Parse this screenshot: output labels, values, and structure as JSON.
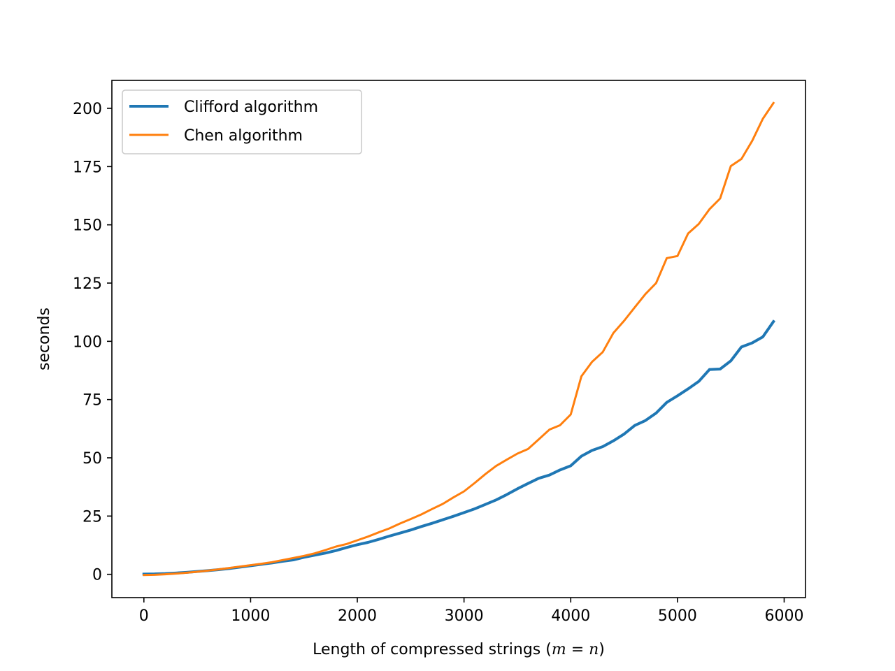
{
  "chart_data": {
    "type": "line",
    "title": "",
    "xlabel_prefix": "Length of compressed strings (",
    "xlabel_math": "m = n",
    "xlabel_suffix": ")",
    "ylabel": "seconds",
    "xlim": [
      -300,
      6200
    ],
    "ylim": [
      -10,
      212
    ],
    "xticks": [
      0,
      1000,
      2000,
      3000,
      4000,
      5000,
      6000
    ],
    "yticks": [
      0,
      25,
      50,
      75,
      100,
      125,
      150,
      175,
      200
    ],
    "grid": false,
    "legend_position": "top-left",
    "x": [
      0,
      100,
      200,
      300,
      400,
      500,
      600,
      700,
      800,
      900,
      1000,
      1100,
      1200,
      1300,
      1400,
      1500,
      1600,
      1700,
      1800,
      1900,
      2000,
      2100,
      2200,
      2300,
      2400,
      2500,
      2600,
      2700,
      2800,
      2900,
      3000,
      3100,
      3200,
      3300,
      3400,
      3500,
      3600,
      3700,
      3800,
      3900,
      4000,
      4100,
      4200,
      4300,
      4400,
      4500,
      4600,
      4700,
      4800,
      4900,
      5000,
      5100,
      5200,
      5300,
      5400,
      5500,
      5600,
      5700,
      5800,
      5900
    ],
    "series": [
      {
        "name": "Clifford algorithm",
        "color": "#1f77b4",
        "values": [
          0.1,
          0.15,
          0.3,
          0.55,
          0.85,
          1.2,
          1.6,
          2.0,
          2.5,
          3.1,
          3.7,
          4.3,
          4.9,
          5.6,
          6.2,
          7.3,
          8.2,
          9.1,
          10.2,
          11.5,
          12.7,
          13.7,
          15.0,
          16.4,
          17.7,
          19.0,
          20.5,
          21.9,
          23.4,
          24.9,
          26.5,
          28.1,
          30.0,
          31.9,
          34.2,
          36.7,
          39.0,
          41.2,
          42.6,
          44.8,
          46.6,
          50.7,
          53.2,
          54.8,
          57.3,
          60.2,
          63.9,
          66.0,
          69.2,
          73.8,
          76.6,
          79.6,
          82.8,
          87.9,
          88.1,
          91.6,
          97.6,
          99.3,
          101.9,
          108.5
        ]
      },
      {
        "name": "Chen algorithm",
        "color": "#ff7f0e",
        "values": [
          -0.3,
          -0.2,
          0.0,
          0.3,
          0.7,
          1.1,
          1.6,
          2.1,
          2.7,
          3.3,
          3.9,
          4.5,
          5.2,
          6.1,
          7.0,
          7.9,
          9.0,
          10.4,
          11.9,
          13.0,
          14.6,
          16.2,
          18.0,
          19.7,
          21.8,
          23.7,
          25.7,
          28.0,
          30.2,
          33.0,
          35.6,
          39.2,
          43.0,
          46.5,
          49.2,
          51.8,
          53.8,
          57.9,
          62.1,
          64.0,
          68.6,
          85.0,
          91.2,
          95.4,
          103.6,
          108.8,
          114.6,
          120.3,
          125.0,
          135.7,
          136.6,
          146.3,
          150.4,
          156.7,
          161.3,
          175.2,
          178.3,
          186.0,
          195.5,
          202.3
        ]
      }
    ]
  }
}
